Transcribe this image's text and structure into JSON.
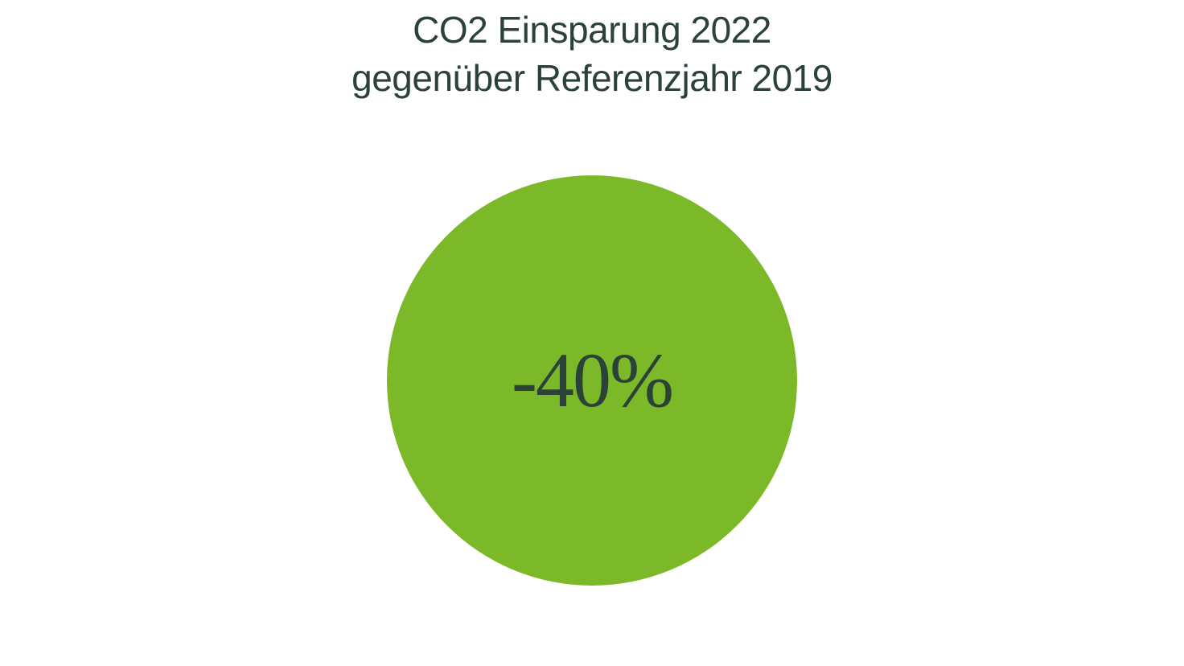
{
  "infographic": {
    "type": "single-value-circle",
    "title_line1": "CO2 Einsparung 2022",
    "title_line2": "gegenüber Referenzjahr 2019",
    "title_color": "#2b4239",
    "title_fontsize": 46,
    "title_fontweight": 400,
    "value": "-40%",
    "value_color": "#2b4239",
    "value_fontsize": 96,
    "value_font_family": "serif",
    "circle_color": "#7cb928",
    "circle_diameter": 510,
    "circle_margin_top": 90,
    "background_color": "#ffffff"
  }
}
